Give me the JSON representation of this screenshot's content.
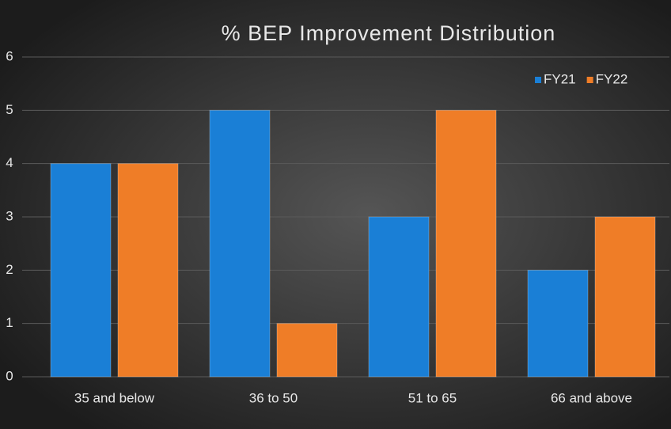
{
  "chart_data": {
    "type": "bar",
    "title": "% BEP Improvement Distribution",
    "categories": [
      "35 and below",
      "36 to 50",
      "51 to 65",
      "66 and above"
    ],
    "series": [
      {
        "name": "FY21",
        "color": "#1a7fd6",
        "values": [
          4,
          5,
          3,
          2
        ]
      },
      {
        "name": "FY22",
        "color": "#ef7d27",
        "values": [
          4,
          1,
          5,
          3
        ]
      }
    ],
    "ylim": [
      0,
      6
    ],
    "yticks": [
      0,
      1,
      2,
      3,
      4,
      5,
      6
    ],
    "grid": true,
    "legend": "upper right"
  }
}
